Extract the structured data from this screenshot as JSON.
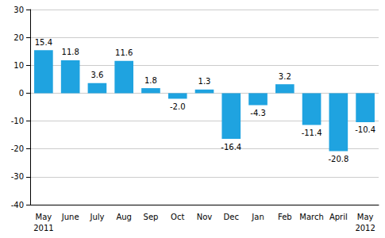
{
  "chart_data": {
    "type": "bar",
    "categories": [
      "May\n2011",
      "June",
      "July",
      "Aug",
      "Sep",
      "Oct",
      "Nov",
      "Dec",
      "Jan",
      "Feb",
      "March",
      "April",
      "May\n2012"
    ],
    "values": [
      15.4,
      11.8,
      3.6,
      11.6,
      1.8,
      -2.0,
      1.3,
      -16.4,
      -4.3,
      3.2,
      -11.4,
      -20.8,
      -10.4
    ],
    "value_labels": [
      "15.4",
      "11.8",
      "3.6",
      "11.6",
      "1.8",
      "-2.0",
      "1.3",
      "-16.4",
      "-4.3",
      "3.2",
      "-11.4",
      "-20.8",
      "-10.4"
    ],
    "color": "#1fa3e0",
    "ylim": [
      -40,
      30
    ],
    "yticks": [
      -40,
      -30,
      -20,
      -10,
      0,
      10,
      20,
      30
    ],
    "grid": true,
    "data_labels": true
  }
}
